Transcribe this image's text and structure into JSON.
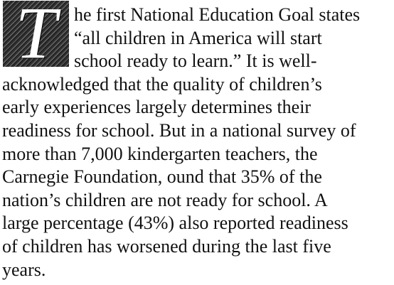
{
  "drop_cap": "T",
  "lines": [
    "he first National Education Goal states",
    "“all children in America will start",
    "school ready to learn.” It is well-",
    "acknowledged that the quality of children’s",
    "early experiences largely determines their",
    "readiness for school. But in a national survey of",
    "more than 7,000 kindergarten teachers, the",
    "Carnegie Foundation, ound that 35% of the",
    "nation’s children are not ready for school. A",
    "large percentage (43%) also reported readiness",
    "of children has worsened during the last five",
    "years."
  ]
}
